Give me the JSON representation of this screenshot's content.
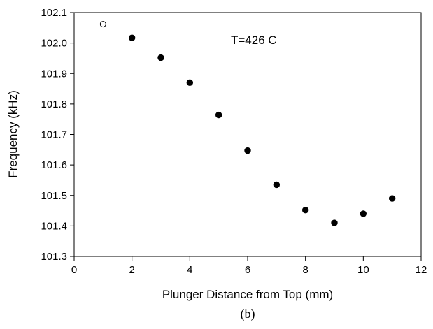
{
  "chart_data": {
    "type": "scatter",
    "title": "",
    "xlabel": "Plunger Distance from Top (mm)",
    "ylabel": "Frequency (kHz)",
    "annotation": "T=426 C",
    "caption": "(b)",
    "xlim": [
      0,
      12
    ],
    "ylim": [
      101.3,
      102.1
    ],
    "xticks": [
      0,
      2,
      4,
      6,
      8,
      10,
      12
    ],
    "yticks": [
      101.3,
      101.4,
      101.5,
      101.6,
      101.7,
      101.8,
      101.9,
      102.0,
      102.1
    ],
    "yticks_text": [
      "101.3",
      "101.4",
      "101.5",
      "101.6",
      "101.7",
      "101.8",
      "101.9",
      "102.0",
      "102.1"
    ],
    "grid": false,
    "series": [
      {
        "marker": "open-circle",
        "points": [
          {
            "x": 1,
            "y": 102.062
          }
        ]
      },
      {
        "marker": "filled-circle",
        "points": [
          {
            "x": 2,
            "y": 102.017
          },
          {
            "x": 3,
            "y": 101.952
          },
          {
            "x": 4,
            "y": 101.87
          },
          {
            "x": 5,
            "y": 101.764
          },
          {
            "x": 6,
            "y": 101.647
          },
          {
            "x": 7,
            "y": 101.535
          },
          {
            "x": 8,
            "y": 101.452
          },
          {
            "x": 9,
            "y": 101.41
          },
          {
            "x": 10,
            "y": 101.44
          },
          {
            "x": 11,
            "y": 101.49
          }
        ]
      }
    ]
  }
}
